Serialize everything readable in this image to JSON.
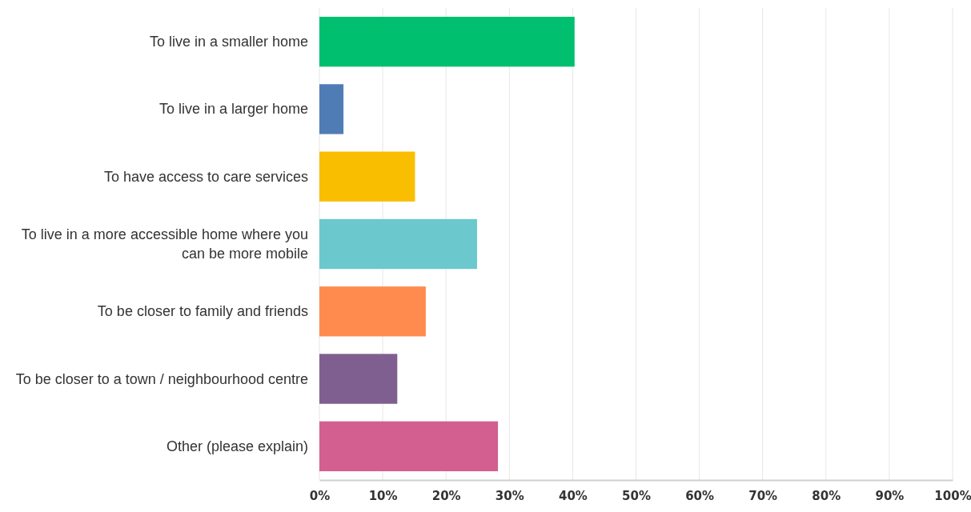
{
  "chart_data": {
    "type": "bar",
    "orientation": "horizontal",
    "categories": [
      "To live in a smaller home",
      "To live in a larger home",
      "To have access to care services",
      "To live in a more accessible home where you can be more mobile",
      "To be closer to family and friends",
      "To be closer to a town / neighbourhood centre",
      "Other (please explain)"
    ],
    "values": [
      40.3,
      3.8,
      15.1,
      24.9,
      16.8,
      12.3,
      28.2
    ],
    "colors": [
      "#00bf6f",
      "#507cb6",
      "#f9be00",
      "#6bc8cd",
      "#ff8b4f",
      "#7f5f90",
      "#d25f90"
    ],
    "xlim": [
      0,
      100
    ],
    "xticks": [
      {
        "value": 0,
        "label": "0%"
      },
      {
        "value": 10,
        "label": "10%"
      },
      {
        "value": 20,
        "label": "20%"
      },
      {
        "value": 30,
        "label": "30%"
      },
      {
        "value": 40,
        "label": "40%"
      },
      {
        "value": 50,
        "label": "50%"
      },
      {
        "value": 60,
        "label": "60%"
      },
      {
        "value": 70,
        "label": "70%"
      },
      {
        "value": 80,
        "label": "80%"
      },
      {
        "value": 90,
        "label": "90%"
      },
      {
        "value": 100,
        "label": "100%"
      }
    ],
    "grid": "x"
  }
}
